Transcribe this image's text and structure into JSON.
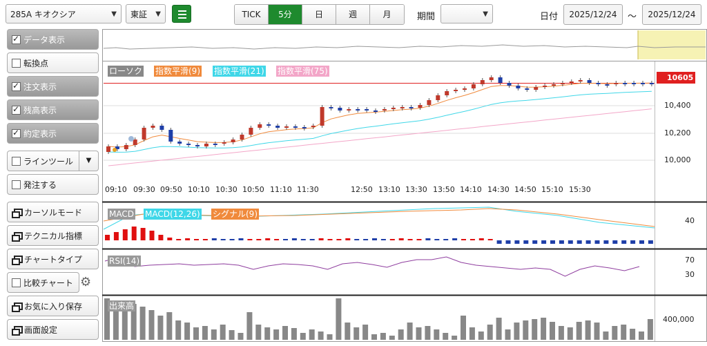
{
  "toolbar": {
    "symbol": "285A キオクシア",
    "market": "東証",
    "intervals": [
      "TICK",
      "5分",
      "日",
      "週",
      "月"
    ],
    "active_interval": "5分",
    "period_label": "期間",
    "period_value": "",
    "date_label": "日付",
    "date_from": "2025/12/24",
    "date_sep": "～",
    "date_to": "2025/12/24"
  },
  "sidebar": {
    "items": [
      {
        "label": "データ表示",
        "type": "check",
        "checked": true,
        "on": true
      },
      {
        "label": "転換点",
        "type": "check",
        "checked": false,
        "on": false
      },
      {
        "label": "注文表示",
        "type": "check",
        "checked": true,
        "on": true
      },
      {
        "label": "残高表示",
        "type": "check",
        "checked": true,
        "on": true
      },
      {
        "label": "約定表示",
        "type": "check",
        "checked": true,
        "on": true
      },
      {
        "label": "ラインツール",
        "type": "check-drop",
        "checked": false
      },
      {
        "label": "発注する",
        "type": "check",
        "checked": false
      },
      {
        "label": "カーソルモード",
        "type": "win"
      },
      {
        "label": "テクニカル指標",
        "type": "win"
      },
      {
        "label": "チャートタイプ",
        "type": "win"
      },
      {
        "label": "比較チャート",
        "type": "check-gear",
        "checked": false
      },
      {
        "label": "お気に入り保存",
        "type": "win"
      },
      {
        "label": "画面設定",
        "type": "win"
      }
    ]
  },
  "main_chart": {
    "legend": [
      "ローソク",
      "指数平滑(9)",
      "指数平滑(21)",
      "指数平滑(75)"
    ],
    "legend_colors": [
      "#888888",
      "#f08a3c",
      "#3fd7e8",
      "#f3a6c8"
    ],
    "current_price": "10605",
    "price_ticks": [
      "10,400",
      "10,200",
      "10,000"
    ],
    "time_labels": [
      "09:10",
      "09:30",
      "09:50",
      "10:10",
      "10:30",
      "10:50",
      "11:10",
      "11:30",
      "12:50",
      "13:10",
      "13:30",
      "13:50",
      "14:10",
      "14:30",
      "14:50",
      "15:10",
      "15:30"
    ]
  },
  "macd_panel": {
    "legend": [
      "MACD",
      "MACD(12,26)",
      "シグナル(9)"
    ],
    "tick": "40"
  },
  "rsi_panel": {
    "legend": [
      "RSI(14)"
    ],
    "ticks": [
      "70",
      "30"
    ]
  },
  "volume_panel": {
    "legend": [
      "出来高"
    ],
    "tick": "400,000"
  },
  "colors": {
    "accent": "#1e8a2e",
    "up": "#c0392b",
    "down": "#1f3fa8",
    "price_line": "#e02020"
  }
}
